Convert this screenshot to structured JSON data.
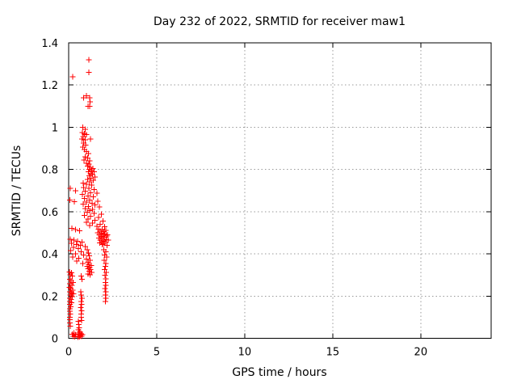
{
  "chart": {
    "title": "Day 232 of 2022, SRMTID for receiver maw1",
    "xlabel": "GPS time / hours",
    "ylabel": "SRMTID / TECUs"
  },
  "chart_data": {
    "type": "scatter",
    "title": "Day 232 of 2022, SRMTID for receiver maw1",
    "xlabel": "GPS time / hours",
    "ylabel": "SRMTID / TECUs",
    "xlim": [
      0,
      24
    ],
    "ylim": [
      0,
      1.4
    ],
    "xticks": [
      0,
      5,
      10,
      15,
      20
    ],
    "xtick_labels": [
      "0",
      "5",
      "10",
      "15",
      "20"
    ],
    "yticks": [
      0,
      0.2,
      0.4,
      0.6,
      0.8,
      1.0,
      1.2,
      1.4
    ],
    "ytick_labels": [
      "0",
      "0.2",
      "0.4",
      "0.6",
      "0.8",
      "1",
      "1.2",
      "1.4"
    ],
    "grid": true,
    "grid_color": "#999999",
    "border_color": "#000000",
    "marker": "plus",
    "marker_color": "#ff0000",
    "legend": "none",
    "series": [
      {
        "name": "SRMTID",
        "points": [
          [
            1.15,
            1.32
          ],
          [
            1.15,
            1.26
          ],
          [
            0.23,
            1.24
          ],
          [
            0.84,
            1.14
          ],
          [
            1.02,
            1.15
          ],
          [
            1.2,
            1.14
          ],
          [
            1.22,
            1.12
          ],
          [
            1.1,
            1.1
          ],
          [
            1.2,
            1.1
          ],
          [
            0.8,
            1.0
          ],
          [
            0.95,
            0.99
          ],
          [
            0.78,
            0.975
          ],
          [
            0.9,
            0.97
          ],
          [
            1.0,
            0.965
          ],
          [
            0.83,
            0.955
          ],
          [
            0.75,
            0.945
          ],
          [
            0.93,
            0.94
          ],
          [
            1.23,
            0.945
          ],
          [
            0.86,
            0.925
          ],
          [
            0.97,
            0.915
          ],
          [
            0.81,
            0.905
          ],
          [
            0.9,
            0.895
          ],
          [
            1.02,
            0.885
          ],
          [
            1.13,
            0.875
          ],
          [
            0.95,
            0.86
          ],
          [
            1.07,
            0.855
          ],
          [
            0.88,
            0.845
          ],
          [
            1.2,
            0.84
          ],
          [
            1.0,
            0.83
          ],
          [
            1.15,
            0.825
          ],
          [
            1.07,
            0.815
          ],
          [
            1.25,
            0.81
          ],
          [
            1.38,
            0.805
          ],
          [
            1.18,
            0.8
          ],
          [
            1.3,
            0.795
          ],
          [
            1.12,
            0.79
          ],
          [
            1.44,
            0.79
          ],
          [
            1.23,
            0.78
          ],
          [
            1.35,
            0.775
          ],
          [
            1.16,
            0.77
          ],
          [
            1.48,
            0.765
          ],
          [
            1.27,
            0.758
          ],
          [
            1.07,
            0.752
          ],
          [
            1.4,
            0.748
          ],
          [
            1.2,
            0.742
          ],
          [
            0.82,
            0.735
          ],
          [
            1.0,
            0.73
          ],
          [
            1.3,
            0.725
          ],
          [
            0.86,
            0.715
          ],
          [
            1.15,
            0.71
          ],
          [
            1.45,
            0.705
          ],
          [
            0.1,
            0.71
          ],
          [
            0.4,
            0.7
          ],
          [
            0.95,
            0.698
          ],
          [
            1.25,
            0.69
          ],
          [
            1.6,
            0.688
          ],
          [
            0.77,
            0.682
          ],
          [
            1.1,
            0.675
          ],
          [
            1.4,
            0.67
          ],
          [
            0.06,
            0.655
          ],
          [
            0.32,
            0.647
          ],
          [
            0.9,
            0.662
          ],
          [
            1.2,
            0.655
          ],
          [
            1.65,
            0.65
          ],
          [
            1.0,
            0.645
          ],
          [
            1.33,
            0.64
          ],
          [
            0.82,
            0.635
          ],
          [
            1.5,
            0.632
          ],
          [
            1.13,
            0.625
          ],
          [
            1.75,
            0.622
          ],
          [
            0.95,
            0.615
          ],
          [
            1.35,
            0.61
          ],
          [
            1.2,
            0.605
          ],
          [
            1.05,
            0.598
          ],
          [
            1.45,
            0.592
          ],
          [
            1.85,
            0.588
          ],
          [
            0.9,
            0.582
          ],
          [
            1.25,
            0.578
          ],
          [
            1.7,
            0.572
          ],
          [
            1.1,
            0.565
          ],
          [
            1.5,
            0.56
          ],
          [
            1.95,
            0.556
          ],
          [
            1.0,
            0.55
          ],
          [
            1.35,
            0.545
          ],
          [
            1.8,
            0.54
          ],
          [
            1.2,
            0.535
          ],
          [
            1.6,
            0.53
          ],
          [
            2.05,
            0.528
          ],
          [
            1.7,
            0.518
          ],
          [
            1.9,
            0.515
          ],
          [
            2.1,
            0.512
          ],
          [
            1.8,
            0.508
          ],
          [
            2.0,
            0.505
          ],
          [
            1.65,
            0.5
          ],
          [
            1.85,
            0.498
          ],
          [
            2.05,
            0.495
          ],
          [
            1.75,
            0.49
          ],
          [
            1.95,
            0.488
          ],
          [
            2.15,
            0.485
          ],
          [
            1.83,
            0.482
          ],
          [
            2.03,
            0.478
          ],
          [
            1.73,
            0.475
          ],
          [
            1.93,
            0.472
          ],
          [
            2.13,
            0.468
          ],
          [
            1.8,
            0.465
          ],
          [
            2.0,
            0.462
          ],
          [
            1.87,
            0.458
          ],
          [
            2.07,
            0.455
          ],
          [
            1.77,
            0.452
          ],
          [
            1.97,
            0.448
          ],
          [
            1.9,
            0.445
          ],
          [
            2.2,
            0.49
          ],
          [
            2.25,
            0.465
          ],
          [
            2.18,
            0.44
          ],
          [
            0.18,
            0.52
          ],
          [
            0.4,
            0.515
          ],
          [
            0.62,
            0.51
          ],
          [
            0.1,
            0.47
          ],
          [
            0.3,
            0.465
          ],
          [
            0.5,
            0.46
          ],
          [
            0.75,
            0.455
          ],
          [
            0.15,
            0.45
          ],
          [
            0.44,
            0.445
          ],
          [
            0.66,
            0.44
          ],
          [
            0.95,
            0.435
          ],
          [
            0.27,
            0.43
          ],
          [
            0.55,
            0.425
          ],
          [
            1.05,
            0.42
          ],
          [
            0.12,
            0.415
          ],
          [
            0.7,
            0.41
          ],
          [
            1.12,
            0.405
          ],
          [
            0.4,
            0.4
          ],
          [
            0.85,
            0.395
          ],
          [
            1.18,
            0.39
          ],
          [
            0.22,
            0.385
          ],
          [
            0.58,
            0.38
          ],
          [
            1.0,
            0.375
          ],
          [
            1.22,
            0.37
          ],
          [
            0.47,
            0.365
          ],
          [
            1.1,
            0.36
          ],
          [
            0.8,
            0.355
          ],
          [
            1.15,
            0.35
          ],
          [
            1.28,
            0.345
          ],
          [
            1.05,
            0.34
          ],
          [
            1.2,
            0.335
          ],
          [
            1.1,
            0.33
          ],
          [
            1.25,
            0.325
          ],
          [
            1.17,
            0.318
          ],
          [
            1.3,
            0.312
          ],
          [
            1.1,
            0.305
          ],
          [
            1.22,
            0.3
          ],
          [
            2.0,
            0.42
          ],
          [
            2.1,
            0.41
          ],
          [
            2.05,
            0.395
          ],
          [
            2.15,
            0.385
          ],
          [
            2.02,
            0.37
          ],
          [
            2.12,
            0.355
          ],
          [
            2.08,
            0.34
          ],
          [
            2.04,
            0.325
          ],
          [
            2.14,
            0.312
          ],
          [
            2.06,
            0.298
          ],
          [
            2.1,
            0.282
          ],
          [
            2.08,
            0.265
          ],
          [
            2.12,
            0.25
          ],
          [
            2.07,
            0.235
          ],
          [
            2.1,
            0.22
          ],
          [
            2.08,
            0.205
          ],
          [
            2.11,
            0.19
          ],
          [
            2.09,
            0.175
          ],
          [
            0.05,
            0.315
          ],
          [
            0.17,
            0.31
          ],
          [
            0.09,
            0.3
          ],
          [
            0.21,
            0.295
          ],
          [
            0.06,
            0.28
          ],
          [
            0.14,
            0.272
          ],
          [
            0.25,
            0.265
          ],
          [
            0.08,
            0.258
          ],
          [
            0.18,
            0.25
          ],
          [
            0.05,
            0.242
          ],
          [
            0.12,
            0.235
          ],
          [
            0.23,
            0.228
          ],
          [
            0.07,
            0.22
          ],
          [
            0.15,
            0.215
          ],
          [
            0.28,
            0.21
          ],
          [
            0.1,
            0.205
          ],
          [
            0.2,
            0.198
          ],
          [
            0.06,
            0.19
          ],
          [
            0.13,
            0.183
          ],
          [
            0.08,
            0.175
          ],
          [
            0.17,
            0.168
          ],
          [
            0.06,
            0.16
          ],
          [
            0.11,
            0.15
          ],
          [
            0.08,
            0.14
          ],
          [
            0.07,
            0.128
          ],
          [
            0.09,
            0.115
          ],
          [
            0.06,
            0.1
          ],
          [
            0.08,
            0.088
          ],
          [
            0.07,
            0.072
          ],
          [
            0.1,
            0.058
          ],
          [
            0.72,
            0.295
          ],
          [
            0.76,
            0.28
          ],
          [
            0.68,
            0.22
          ],
          [
            0.72,
            0.205
          ],
          [
            0.76,
            0.19
          ],
          [
            0.7,
            0.175
          ],
          [
            0.74,
            0.16
          ],
          [
            0.69,
            0.145
          ],
          [
            0.74,
            0.13
          ],
          [
            0.72,
            0.115
          ],
          [
            0.7,
            0.1
          ],
          [
            0.73,
            0.085
          ],
          [
            0.2,
            0.02
          ],
          [
            0.25,
            0.01
          ],
          [
            0.3,
            0.025
          ],
          [
            0.35,
            0.008
          ],
          [
            0.4,
            0.018
          ],
          [
            0.52,
            0.005
          ],
          [
            0.54,
            0.02
          ],
          [
            0.56,
            0.01
          ],
          [
            0.59,
            0.025
          ],
          [
            0.62,
            0.008
          ],
          [
            0.64,
            0.03
          ],
          [
            0.67,
            0.012
          ],
          [
            0.7,
            0.022
          ],
          [
            0.74,
            0.01
          ],
          [
            0.79,
            0.018
          ],
          [
            0.59,
            0.05
          ],
          [
            0.54,
            0.04
          ],
          [
            0.57,
            0.065
          ],
          [
            0.55,
            0.08
          ]
        ]
      }
    ]
  }
}
